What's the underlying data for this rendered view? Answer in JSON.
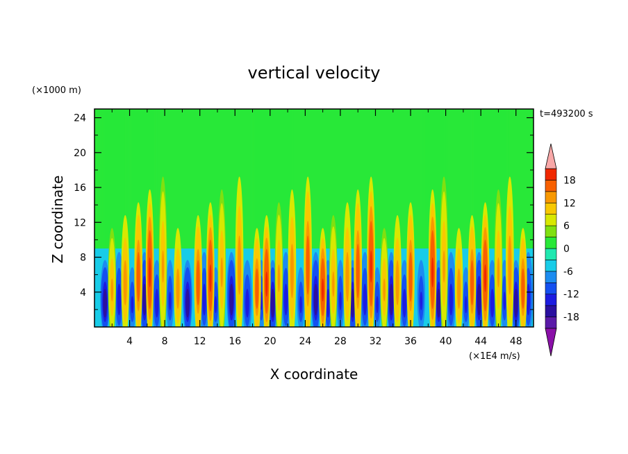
{
  "chart_data": {
    "type": "heatmap",
    "title": "vertical velocity",
    "xlabel": "X coordinate",
    "ylabel": "Z coordinate",
    "y_unit_label": "(×1000 m)",
    "value_unit_label": "(×1E4 m/s)",
    "time_label": "t=493200 s",
    "xlim": [
      0,
      50
    ],
    "ylim": [
      0,
      25
    ],
    "x_ticks": [
      "4",
      "8",
      "12",
      "16",
      "20",
      "24",
      "28",
      "32",
      "36",
      "40",
      "44",
      "48"
    ],
    "y_ticks": [
      "4",
      "8",
      "12",
      "16",
      "20",
      "24"
    ],
    "colorbar": {
      "levels": [
        -21,
        -18,
        -15,
        -12,
        -9,
        -6,
        -3,
        0,
        3,
        6,
        9,
        12,
        15,
        18,
        21
      ],
      "tick_labels": [
        "-18",
        "-12",
        "-6",
        "0",
        "6",
        "12",
        "18"
      ],
      "extend": "both",
      "colors": [
        "#5a1aa8",
        "#2a10a0",
        "#1c1ce0",
        "#1450f0",
        "#1c8cf0",
        "#18cce8",
        "#20e8b0",
        "#28e838",
        "#80e010",
        "#d8e800",
        "#f8c800",
        "#f89800",
        "#f86000",
        "#f02800",
        "#d80808"
      ],
      "extend_low_color": "#8a10a8",
      "extend_high_color": "#f8a8a8"
    },
    "updraft_columns_x": [
      2,
      3.5,
      5,
      6.3,
      7.8,
      9.5,
      11.8,
      13.2,
      14.5,
      16.5,
      18.5,
      19.6,
      21,
      22.5,
      24.3,
      26,
      27.2,
      28.8,
      30,
      31.5,
      33,
      34.5,
      36,
      38.5,
      39.8,
      41.5,
      43,
      44.5,
      46,
      47.3,
      48.8
    ],
    "downdraft_columns_x": [
      1.2,
      2.8,
      4.3,
      5.7,
      7.1,
      8.6,
      10.6,
      12.5,
      13.8,
      15.6,
      17.4,
      19,
      20.3,
      21.8,
      23.5,
      25.2,
      26.6,
      28,
      29.4,
      30.8,
      32.2,
      33.8,
      35.3,
      37.2,
      39.2,
      40.6,
      42.3,
      43.8,
      45.3,
      46.7,
      48,
      49.4
    ],
    "background_value": 0,
    "upper_positive_regions_x": [
      [
        1,
        3.5
      ],
      [
        4,
        7
      ],
      [
        18,
        22.5
      ],
      [
        37.5,
        40
      ],
      [
        43,
        47
      ]
    ]
  }
}
